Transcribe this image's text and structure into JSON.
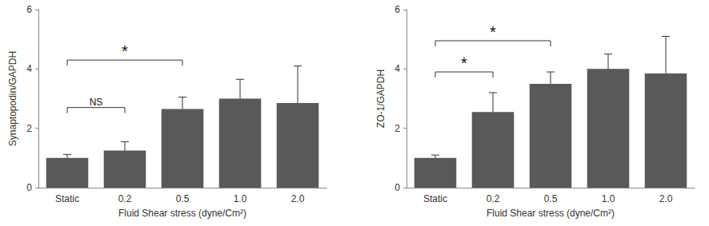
{
  "chart_data": [
    {
      "type": "bar",
      "ylabel": "Synaptopodin/GAPDH",
      "xlabel": "Fluid Shear stress (dyne/Cm²)",
      "categories": [
        "Static",
        "0.2",
        "0.5",
        "1.0",
        "2.0"
      ],
      "values": [
        1.0,
        1.25,
        2.65,
        3.0,
        2.85
      ],
      "errors": [
        0.12,
        0.3,
        0.4,
        0.65,
        1.25
      ],
      "color": "#595959",
      "ylim": [
        0,
        6
      ],
      "yticks": [
        0,
        2,
        4,
        6
      ],
      "grid": false,
      "annotations": [
        {
          "from": "Static",
          "to": "0.2",
          "label": "NS",
          "y": 2.7
        },
        {
          "from": "Static",
          "to": "0.5",
          "label": "*",
          "y": 4.3
        }
      ]
    },
    {
      "type": "bar",
      "ylabel": "ZO-1/GAPDH",
      "xlabel": "Fluid Shear stress (dyne/Cm²)",
      "categories": [
        "Static",
        "0.2",
        "0.5",
        "1.0",
        "2.0"
      ],
      "values": [
        1.0,
        2.55,
        3.5,
        4.0,
        3.85
      ],
      "errors": [
        0.1,
        0.65,
        0.4,
        0.5,
        1.25
      ],
      "color": "#595959",
      "ylim": [
        0,
        6
      ],
      "yticks": [
        0,
        2,
        4,
        6
      ],
      "grid": false,
      "annotations": [
        {
          "from": "Static",
          "to": "0.2",
          "label": "*",
          "y": 3.9
        },
        {
          "from": "Static",
          "to": "0.5",
          "label": "*",
          "y": 4.95
        }
      ]
    }
  ]
}
